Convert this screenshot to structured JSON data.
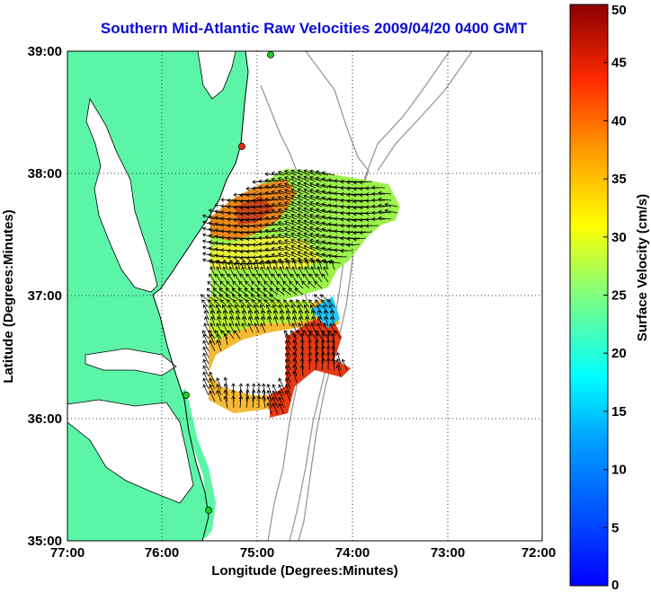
{
  "title": "Southern Mid-Atlantic Raw Velocities 2009/04/20 0400 GMT",
  "map": {
    "xlabel": "Longitude (Degrees:Minutes)",
    "ylabel": "Latitude (Degrees:Minutes)",
    "x_ticks": [
      "77:00",
      "76:00",
      "75:00",
      "74:00",
      "73:00",
      "72:00"
    ],
    "y_ticks": [
      "39:00",
      "38:00",
      "37:00",
      "36:00",
      "35:00"
    ],
    "lon_range_west": [
      77,
      72
    ],
    "lat_range": [
      35,
      39
    ],
    "land_color": "#5cf5a8",
    "station_colors": [
      "#22cc22",
      "#ee2222"
    ]
  },
  "colorbar": {
    "label": "Surface Velocity (cm/s)",
    "ticks": [
      "0",
      "5",
      "10",
      "15",
      "20",
      "25",
      "30",
      "35",
      "40",
      "45",
      "50"
    ],
    "range": [
      0,
      50
    ],
    "colormap": "jet"
  }
}
